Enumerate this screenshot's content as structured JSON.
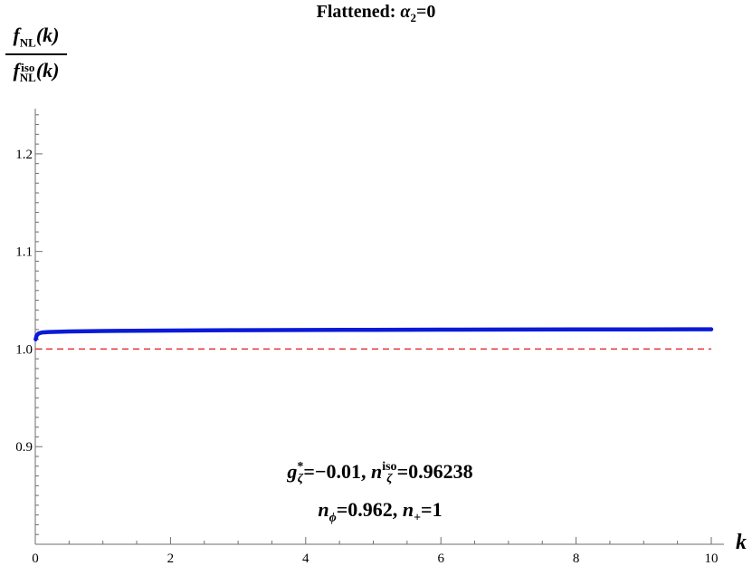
{
  "chart_data": {
    "type": "line",
    "title": "Flattened: α₂=0",
    "xlabel": "k",
    "ylabel": "f_NL(k) / f_NL^iso(k)",
    "xlim": [
      0,
      10
    ],
    "ylim": [
      0.8,
      1.25
    ],
    "xticks": [
      0,
      2,
      4,
      6,
      8,
      10
    ],
    "xtick_labels": [
      "0",
      "2",
      "4",
      "6",
      "8",
      "10"
    ],
    "yticks": [
      0.9,
      1.0,
      1.1,
      1.2
    ],
    "ytick_labels": [
      "0.9",
      "1.0",
      "1.1",
      "1.2"
    ],
    "grid": false,
    "series": [
      {
        "color": "#0a1ad8",
        "style": "solid",
        "x": [
          0.005,
          0.02,
          0.05,
          0.1,
          0.2,
          0.5,
          1,
          2,
          3,
          4,
          5,
          6,
          7,
          8,
          9,
          10
        ],
        "y": [
          1.01,
          1.014,
          1.016,
          1.017,
          1.0175,
          1.018,
          1.0185,
          1.019,
          1.0193,
          1.0195,
          1.0197,
          1.0199,
          1.02,
          1.0201,
          1.0202,
          1.0203
        ]
      },
      {
        "color": "#e0181c",
        "style": "dashed",
        "x": [
          0,
          10
        ],
        "y": [
          1.0,
          1.0
        ]
      }
    ],
    "annotations": [
      "g_ζ^*=−0.01, n_ζ^iso=0.96238",
      "n_ϕ=0.962, n_+=1"
    ]
  }
}
